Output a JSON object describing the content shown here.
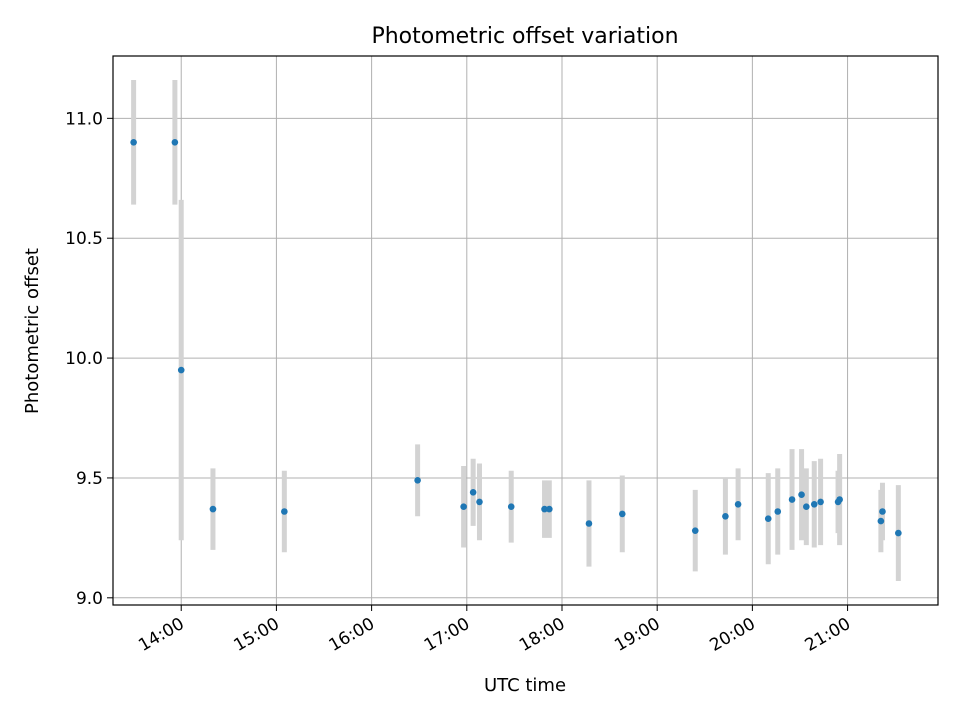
{
  "chart_data": {
    "type": "scatter",
    "title": "Photometric offset variation",
    "xlabel": "UTC time",
    "ylabel": "Photometric offset",
    "x_unit": "hours",
    "xlim": [
      "13:17",
      "21:57"
    ],
    "ylim": [
      8.97,
      11.26
    ],
    "x_ticks": [
      "14:00",
      "15:00",
      "16:00",
      "17:00",
      "18:00",
      "19:00",
      "20:00",
      "21:00"
    ],
    "y_ticks": [
      "9.0",
      "9.5",
      "10.0",
      "10.5",
      "11.0"
    ],
    "grid": true,
    "colors": {
      "point": "#1f77b4",
      "errorbar": "#d3d3d3",
      "grid": "#b0b0b0"
    },
    "series": [
      {
        "points": [
          {
            "x": "13:30",
            "y": 10.9,
            "err": 0.26
          },
          {
            "x": "13:56",
            "y": 10.9,
            "err": 0.26
          },
          {
            "x": "14:00",
            "y": 9.95,
            "err": 0.71
          },
          {
            "x": "14:20",
            "y": 9.37,
            "err": 0.17
          },
          {
            "x": "15:05",
            "y": 9.36,
            "err": 0.17
          },
          {
            "x": "16:29",
            "y": 9.49,
            "err": 0.15
          },
          {
            "x": "16:58",
            "y": 9.38,
            "err": 0.17
          },
          {
            "x": "17:04",
            "y": 9.44,
            "err": 0.14
          },
          {
            "x": "17:08",
            "y": 9.4,
            "err": 0.16
          },
          {
            "x": "17:28",
            "y": 9.38,
            "err": 0.15
          },
          {
            "x": "17:49",
            "y": 9.37,
            "err": 0.12
          },
          {
            "x": "17:52",
            "y": 9.37,
            "err": 0.12
          },
          {
            "x": "18:17",
            "y": 9.31,
            "err": 0.18
          },
          {
            "x": "18:38",
            "y": 9.35,
            "err": 0.16
          },
          {
            "x": "19:24",
            "y": 9.28,
            "err": 0.17
          },
          {
            "x": "19:43",
            "y": 9.34,
            "err": 0.16
          },
          {
            "x": "19:51",
            "y": 9.39,
            "err": 0.15
          },
          {
            "x": "20:10",
            "y": 9.33,
            "err": 0.19
          },
          {
            "x": "20:16",
            "y": 9.36,
            "err": 0.18
          },
          {
            "x": "20:25",
            "y": 9.41,
            "err": 0.21
          },
          {
            "x": "20:31",
            "y": 9.43,
            "err": 0.19
          },
          {
            "x": "20:34",
            "y": 9.38,
            "err": 0.16
          },
          {
            "x": "20:39",
            "y": 9.39,
            "err": 0.18
          },
          {
            "x": "20:43",
            "y": 9.4,
            "err": 0.18
          },
          {
            "x": "20:54",
            "y": 9.4,
            "err": 0.13
          },
          {
            "x": "20:55",
            "y": 9.41,
            "err": 0.19
          },
          {
            "x": "21:21",
            "y": 9.32,
            "err": 0.13
          },
          {
            "x": "21:22",
            "y": 9.36,
            "err": 0.12
          },
          {
            "x": "21:32",
            "y": 9.27,
            "err": 0.2
          }
        ]
      }
    ]
  }
}
